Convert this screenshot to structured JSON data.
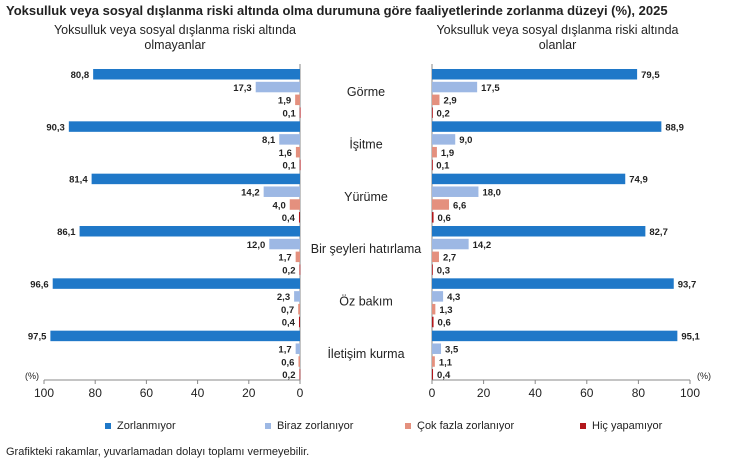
{
  "chart_data": {
    "type": "bar",
    "orientation": "horizontal",
    "title": "Yoksulluk veya sosyal dışlanma riski altında olma durumuna göre faaliyetlerinde zorlanma düzeyi (%), 2025",
    "categories": [
      "Görme",
      "İşitme",
      "Yürüme",
      "Bir şeyleri hatırlama",
      "Öz bakım",
      "İletişim kurma"
    ],
    "series_names": [
      "Zorlanmıyor",
      "Biraz zorlanıyor",
      "Çok fazla zorlanıyor",
      "Hiç yapamıyor"
    ],
    "colors": [
      "#1f78c8",
      "#9db8e4",
      "#e4907e",
      "#b2171c"
    ],
    "axis_unit": "(%)",
    "xlim": [
      0,
      100
    ],
    "ticks": [
      0,
      20,
      40,
      60,
      80,
      100
    ],
    "panels": [
      {
        "subtitle": "Yoksulluk veya sosyal dışlanma riski altında olmayanlar",
        "series": [
          {
            "name": "Zorlanmıyor",
            "values": [
              80.8,
              90.3,
              81.4,
              86.1,
              96.6,
              97.5
            ]
          },
          {
            "name": "Biraz zorlanıyor",
            "values": [
              17.3,
              8.1,
              14.2,
              12.0,
              2.3,
              1.7
            ]
          },
          {
            "name": "Çok fazla zorlanıyor",
            "values": [
              1.9,
              1.6,
              4.0,
              1.7,
              0.7,
              0.6
            ]
          },
          {
            "name": "Hiç yapamıyor",
            "values": [
              0.1,
              0.1,
              0.4,
              0.2,
              0.4,
              0.2
            ]
          }
        ]
      },
      {
        "subtitle": "Yoksulluk veya sosyal dışlanma riski altında olanlar",
        "series": [
          {
            "name": "Zorlanmıyor",
            "values": [
              79.5,
              88.9,
              74.9,
              82.7,
              93.7,
              95.1
            ]
          },
          {
            "name": "Biraz zorlanıyor",
            "values": [
              17.5,
              9.0,
              18.0,
              14.2,
              4.3,
              3.5
            ]
          },
          {
            "name": "Çok fazla zorlanıyor",
            "values": [
              2.9,
              1.9,
              6.6,
              2.7,
              1.3,
              1.1
            ]
          },
          {
            "name": "Hiç yapamıyor",
            "values": [
              0.2,
              0.1,
              0.6,
              0.3,
              0.6,
              0.4
            ]
          }
        ]
      }
    ]
  },
  "title": "Yoksulluk veya sosyal dışlanma riski altında olma durumuna göre faaliyetlerinde zorlanma düzeyi (%), 2025",
  "subtitle_left_line1": "Yoksulluk veya sosyal dışlanma riski altında",
  "subtitle_left_line2": "olmayanlar",
  "subtitle_right_line1": "Yoksulluk veya sosyal dışlanma riski altında",
  "subtitle_right_line2": "olanlar",
  "legend": [
    "Zorlanmıyor",
    "Biraz zorlanıyor",
    "Çok fazla zorlanıyor",
    "Hiç yapamıyor"
  ],
  "note": "Grafikteki rakamlar, yuvarlamadan dolayı toplamı vermeyebilir."
}
